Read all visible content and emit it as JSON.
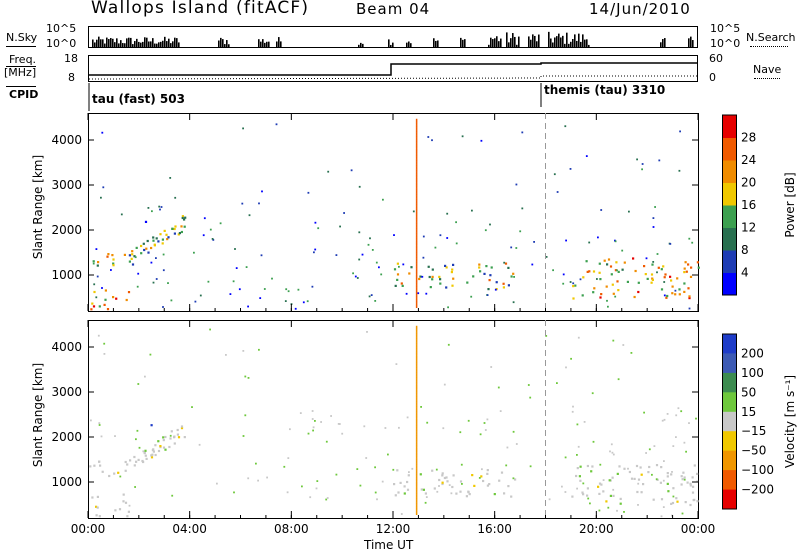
{
  "header": {
    "station": "Wallops Island (fitACF)",
    "beam": "Beam 04",
    "date": "14/Jun/2010"
  },
  "nsky": {
    "label": "N.Sky",
    "tick_top": "10^5",
    "tick_bottom": "10^0",
    "right_label": "N.Search"
  },
  "freq": {
    "label": "Freq.",
    "unit": "[MHz]",
    "tick_top": "18",
    "tick_bottom": "8",
    "right_top": "60",
    "right_bottom": "0",
    "right_label": "Nave"
  },
  "cpid": {
    "label": "CPID",
    "mode1": "tau (fast) 503",
    "mode2": "themis (tau) 3310"
  },
  "chart_data": [
    {
      "type": "heatmap",
      "title": "",
      "xlabel": "Time UT",
      "ylabel": "Slant Range [km]",
      "xlim": [
        0,
        24
      ],
      "ylim": [
        200,
        4600
      ],
      "x_ticks": [
        "00:00",
        "04:00",
        "08:00",
        "12:00",
        "16:00",
        "20:00",
        "00:00"
      ],
      "y_ticks": [
        1000,
        2000,
        3000,
        4000
      ],
      "colorbar": {
        "label": "Power [dB]",
        "ticks": [
          4,
          8,
          12,
          16,
          20,
          24,
          28
        ],
        "range": [
          0,
          32
        ],
        "colors": [
          "#0000ff",
          "#1e3cb4",
          "#287050",
          "#3ca050",
          "#f0c800",
          "#f08c00",
          "#f05a00",
          "#e60000"
        ]
      },
      "regions": [
        {
          "t0": 0.0,
          "t1": 1.4,
          "r0": 1100,
          "r1": 1500,
          "level": 0.6
        },
        {
          "t0": 1.4,
          "t1": 3.8,
          "r0": 1300,
          "r1": 2400,
          "level": 0.45
        },
        {
          "t0": 0.0,
          "t1": 1.6,
          "r0": 250,
          "r1": 750,
          "level": 0.65
        },
        {
          "t0": 2.2,
          "t1": 2.6,
          "r0": 2150,
          "r1": 2450,
          "level": 0.35
        },
        {
          "t0": 12.0,
          "t1": 16.8,
          "r0": 700,
          "r1": 1300,
          "level": 0.5
        },
        {
          "t0": 19.0,
          "t1": 24.0,
          "r0": 500,
          "r1": 1400,
          "level": 0.6
        }
      ]
    },
    {
      "type": "heatmap",
      "title": "",
      "xlabel": "Time UT",
      "ylabel": "Slant Range [km]",
      "xlim": [
        0,
        24
      ],
      "ylim": [
        200,
        4600
      ],
      "x_ticks": [
        "00:00",
        "04:00",
        "08:00",
        "12:00",
        "16:00",
        "20:00",
        "00:00"
      ],
      "y_ticks": [
        1000,
        2000,
        3000,
        4000
      ],
      "colorbar": {
        "label": "Velocity [m s⁻¹]",
        "ticks": [
          200,
          100,
          50,
          15,
          -15,
          -50,
          -100,
          -200
        ],
        "colors": [
          "#1e3cc8",
          "#3c5ab4",
          "#3c8c50",
          "#6ec83c",
          "#c8c8c8",
          "#f0c800",
          "#f09600",
          "#f05a00",
          "#e60000"
        ]
      },
      "regions": [
        {
          "t0": 0.0,
          "t1": 1.4,
          "r0": 1100,
          "r1": 1500,
          "class": "ground"
        },
        {
          "t0": 1.4,
          "t1": 3.8,
          "r0": 1300,
          "r1": 2400,
          "class": "ground"
        },
        {
          "t0": 0.0,
          "t1": 1.6,
          "r0": 250,
          "r1": 750,
          "class": "ground"
        },
        {
          "t0": 2.2,
          "t1": 2.6,
          "r0": 2150,
          "r1": 2450,
          "class": "positive"
        },
        {
          "t0": 12.0,
          "t1": 16.8,
          "r0": 700,
          "r1": 1300,
          "class": "ground"
        },
        {
          "t0": 19.0,
          "t1": 24.0,
          "r0": 500,
          "r1": 1400,
          "class": "ground"
        }
      ]
    }
  ]
}
